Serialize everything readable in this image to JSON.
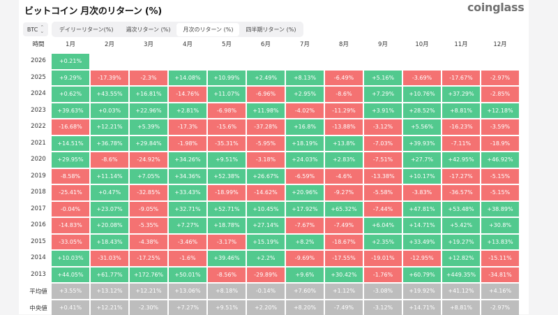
{
  "title": "ビットコイン 月次のリターン (%)",
  "logo": "coinglass",
  "coin_select": {
    "value": "BTC",
    "icon": "updown-chevron-icon"
  },
  "tabs": [
    {
      "label": "デイリーリターン(%)",
      "active": false
    },
    {
      "label": "週次リターン (%)",
      "active": false
    },
    {
      "label": "月次のリターン (%)",
      "active": true
    },
    {
      "label": "四半期リターン (%)",
      "active": false
    }
  ],
  "colors": {
    "positive": "#52c98e",
    "negative": "#f47272",
    "summary": "#bdbdbd"
  },
  "chart_data": {
    "type": "heatmap",
    "row_header": "時間",
    "columns": [
      "1月",
      "2月",
      "3月",
      "4月",
      "5月",
      "6月",
      "7月",
      "8月",
      "9月",
      "10月",
      "11月",
      "12月"
    ],
    "rows": [
      {
        "label": "2026",
        "values": [
          "+0.21%"
        ]
      },
      {
        "label": "2025",
        "values": [
          "+9.29%",
          "-17.39%",
          "-2.3%",
          "+14.08%",
          "+10.99%",
          "+2.49%",
          "+8.13%",
          "-6.49%",
          "+5.16%",
          "-3.69%",
          "-17.67%",
          "-2.97%"
        ]
      },
      {
        "label": "2024",
        "values": [
          "+0.62%",
          "+43.55%",
          "+16.81%",
          "-14.76%",
          "+11.07%",
          "-6.96%",
          "+2.95%",
          "-8.6%",
          "+7.29%",
          "+10.76%",
          "+37.29%",
          "-2.85%"
        ]
      },
      {
        "label": "2023",
        "values": [
          "+39.63%",
          "+0.03%",
          "+22.96%",
          "+2.81%",
          "-6.98%",
          "+11.98%",
          "-4.02%",
          "-11.29%",
          "+3.91%",
          "+28.52%",
          "+8.81%",
          "+12.18%"
        ]
      },
      {
        "label": "2022",
        "values": [
          "-16.68%",
          "+12.21%",
          "+5.39%",
          "-17.3%",
          "-15.6%",
          "-37.28%",
          "+16.8%",
          "-13.88%",
          "-3.12%",
          "+5.56%",
          "-16.23%",
          "-3.59%"
        ]
      },
      {
        "label": "2021",
        "values": [
          "+14.51%",
          "+36.78%",
          "+29.84%",
          "-1.98%",
          "-35.31%",
          "-5.95%",
          "+18.19%",
          "+13.8%",
          "-7.03%",
          "+39.93%",
          "-7.11%",
          "-18.9%"
        ]
      },
      {
        "label": "2020",
        "values": [
          "+29.95%",
          "-8.6%",
          "-24.92%",
          "+34.26%",
          "+9.51%",
          "-3.18%",
          "+24.03%",
          "+2.83%",
          "-7.51%",
          "+27.7%",
          "+42.95%",
          "+46.92%"
        ]
      },
      {
        "label": "2019",
        "values": [
          "-8.58%",
          "+11.14%",
          "+7.05%",
          "+34.36%",
          "+52.38%",
          "+26.67%",
          "-6.59%",
          "-4.6%",
          "-13.38%",
          "+10.17%",
          "-17.27%",
          "-5.15%"
        ]
      },
      {
        "label": "2018",
        "values": [
          "-25.41%",
          "+0.47%",
          "-32.85%",
          "+33.43%",
          "-18.99%",
          "-14.62%",
          "+20.96%",
          "-9.27%",
          "-5.58%",
          "-3.83%",
          "-36.57%",
          "-5.15%"
        ]
      },
      {
        "label": "2017",
        "values": [
          "-0.04%",
          "+23.07%",
          "-9.05%",
          "+32.71%",
          "+52.71%",
          "+10.45%",
          "+17.92%",
          "+65.32%",
          "-7.44%",
          "+47.81%",
          "+53.48%",
          "+38.89%"
        ]
      },
      {
        "label": "2016",
        "values": [
          "-14.83%",
          "+20.08%",
          "-5.35%",
          "+7.27%",
          "+18.78%",
          "+27.14%",
          "-7.67%",
          "-7.49%",
          "+6.04%",
          "+14.71%",
          "+5.42%",
          "+30.8%"
        ]
      },
      {
        "label": "2015",
        "values": [
          "-33.05%",
          "+18.43%",
          "-4.38%",
          "-3.46%",
          "-3.17%",
          "+15.19%",
          "+8.2%",
          "-18.67%",
          "+2.35%",
          "+33.49%",
          "+19.27%",
          "+13.83%"
        ]
      },
      {
        "label": "2014",
        "values": [
          "+10.03%",
          "-31.03%",
          "-17.25%",
          "-1.6%",
          "+39.46%",
          "+2.2%",
          "-9.69%",
          "-17.55%",
          "-19.01%",
          "-12.95%",
          "+12.82%",
          "-15.11%"
        ]
      },
      {
        "label": "2013",
        "values": [
          "+44.05%",
          "+61.77%",
          "+172.76%",
          "+50.01%",
          "-8.56%",
          "-29.89%",
          "+9.6%",
          "+30.42%",
          "-1.76%",
          "+60.79%",
          "+449.35%",
          "-34.81%"
        ]
      }
    ],
    "summary_rows": [
      {
        "label": "平均値",
        "values": [
          "+3.55%",
          "+13.12%",
          "+12.21%",
          "+13.06%",
          "+8.18%",
          "-0.14%",
          "+7.60%",
          "+1.12%",
          "-3.08%",
          "+19.92%",
          "+41.12%",
          "+4.16%"
        ]
      },
      {
        "label": "中央値",
        "values": [
          "+0.41%",
          "+12.21%",
          "-2.30%",
          "+7.27%",
          "+9.51%",
          "+2.20%",
          "+8.20%",
          "-7.49%",
          "-3.12%",
          "+14.71%",
          "+8.81%",
          "-2.97%"
        ]
      }
    ]
  }
}
